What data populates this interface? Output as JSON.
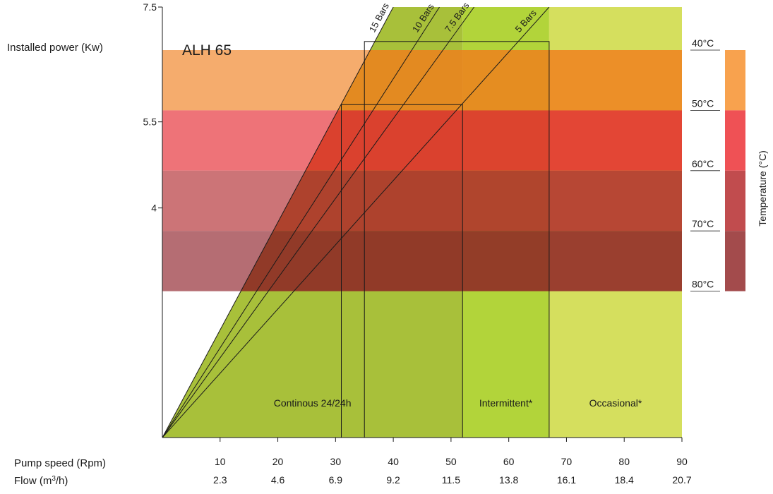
{
  "chart_data": {
    "type": "area",
    "title": "ALH 65",
    "y_axis": {
      "label": "Installed power (Kw)",
      "ticks": [
        {
          "value": 4,
          "label": "4"
        },
        {
          "value": 5.5,
          "label": "5.5"
        },
        {
          "value": 7.5,
          "label": "7.5"
        }
      ],
      "ylim": [
        0,
        7.5
      ]
    },
    "x_axis": {
      "label": "Pump speed (Rpm)",
      "xlim": [
        0,
        90
      ],
      "ticks": [
        10,
        20,
        30,
        40,
        50,
        60,
        70,
        80,
        90
      ],
      "tick_labels": [
        "10",
        "20",
        "30",
        "40",
        "50",
        "60",
        "70",
        "80",
        "90"
      ]
    },
    "x_axis_secondary": {
      "label_prefix": "Flow (m",
      "label_sup": "3",
      "label_suffix": "/h)",
      "tick_labels": [
        "2.3",
        "4.6",
        "6.9",
        "9.2",
        "11.5",
        "13.8",
        "16.1",
        "18.4",
        "20.7"
      ]
    },
    "duty_zones": [
      {
        "label": "Continous 24/24h",
        "x_start": 0,
        "x_end": 52,
        "color": "#a8c03a"
      },
      {
        "label": "Intermittent*",
        "x_start": 52,
        "x_end": 67,
        "color": "#b2d43a"
      },
      {
        "label": "Occasional*",
        "x_start": 67,
        "x_end": 90,
        "color": "#d5df5e"
      }
    ],
    "pressure_lines": [
      {
        "name": "15 Bars",
        "x_at_top": 40
      },
      {
        "name": "10 Bars",
        "x_at_top": 48
      },
      {
        "name": "7.5 Bars",
        "x_at_top": 54
      },
      {
        "name": "5 Bars",
        "x_at_top": 67
      }
    ],
    "region_boxes": [
      {
        "x_start": 35,
        "x_end": 67,
        "y_top": 6.9
      },
      {
        "x_start": 31,
        "x_end": 52,
        "y_top": 5.8
      }
    ],
    "temperature_bands": {
      "label": "Temperature (°C)",
      "bands": [
        {
          "label": "40°C",
          "y_top": 6.75,
          "y_bottom": 5.7,
          "color": "#f07e1c"
        },
        {
          "label": "50°C",
          "y_top": 5.7,
          "y_bottom": 4.65,
          "color": "#e5242c"
        },
        {
          "label": "60°C",
          "y_top": 4.65,
          "y_bottom": 3.6,
          "color": "#b0262b"
        },
        {
          "label": "70°C",
          "y_top": 3.6,
          "y_bottom": 2.55,
          "color": "#8c1c24"
        },
        {
          "label": "80°C",
          "y_top": 2.55,
          "y_bottom": 2.55,
          "color": "#8c1c24"
        }
      ]
    }
  }
}
